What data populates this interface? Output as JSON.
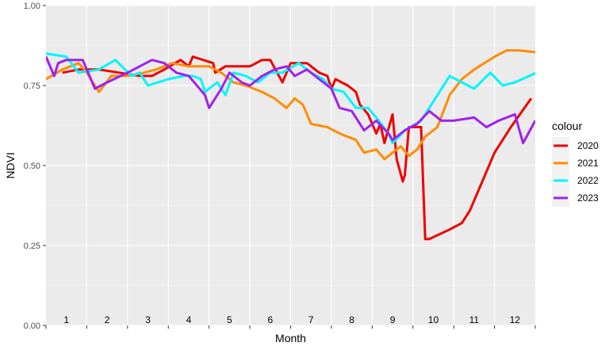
{
  "chart_data": {
    "type": "line",
    "xlabel": "Month",
    "ylabel": "NDVI",
    "xlim": [
      0.5,
      12.5
    ],
    "ylim": [
      0,
      1
    ],
    "yticks": [
      0,
      0.25,
      0.5,
      0.75,
      1
    ],
    "ytick_labels": [
      "0.00",
      "0.25",
      "0.50",
      "0.75",
      "1.00"
    ],
    "month_labels": [
      "1",
      "2",
      "3",
      "4",
      "5",
      "6",
      "7",
      "8",
      "9",
      "10",
      "11",
      "12"
    ],
    "legend_title": "colour",
    "legend_position": "right",
    "grid": true,
    "series": [
      {
        "name": "2020",
        "color": "#ee0000",
        "points": [
          [
            0.9,
            0.79
          ],
          [
            1.3,
            0.8
          ],
          [
            1.8,
            0.8
          ],
          [
            2.3,
            0.79
          ],
          [
            2.8,
            0.78
          ],
          [
            3.1,
            0.78
          ],
          [
            3.4,
            0.8
          ],
          [
            3.8,
            0.83
          ],
          [
            4.0,
            0.81
          ],
          [
            4.1,
            0.84
          ],
          [
            4.6,
            0.82
          ],
          [
            4.65,
            0.79
          ],
          [
            4.9,
            0.81
          ],
          [
            5.1,
            0.81
          ],
          [
            5.5,
            0.81
          ],
          [
            5.8,
            0.83
          ],
          [
            6.0,
            0.83
          ],
          [
            6.3,
            0.76
          ],
          [
            6.5,
            0.82
          ],
          [
            6.9,
            0.82
          ],
          [
            7.2,
            0.79
          ],
          [
            7.4,
            0.78
          ],
          [
            7.5,
            0.74
          ],
          [
            7.6,
            0.77
          ],
          [
            7.9,
            0.75
          ],
          [
            8.1,
            0.73
          ],
          [
            8.2,
            0.69
          ],
          [
            8.4,
            0.66
          ],
          [
            8.6,
            0.6
          ],
          [
            8.7,
            0.63
          ],
          [
            8.8,
            0.57
          ],
          [
            9.0,
            0.66
          ],
          [
            9.1,
            0.52
          ],
          [
            9.25,
            0.45
          ],
          [
            9.3,
            0.47
          ],
          [
            9.4,
            0.62
          ],
          [
            9.7,
            0.62
          ],
          [
            9.8,
            0.27
          ],
          [
            9.9,
            0.27
          ],
          [
            10.4,
            0.3
          ],
          [
            10.7,
            0.32
          ],
          [
            10.9,
            0.36
          ],
          [
            11.5,
            0.54
          ],
          [
            11.9,
            0.62
          ],
          [
            12.4,
            0.71
          ]
        ]
      },
      {
        "name": "2021",
        "color": "#ff8c00",
        "points": [
          [
            0.5,
            0.77
          ],
          [
            0.9,
            0.8
          ],
          [
            1.3,
            0.82
          ],
          [
            1.5,
            0.79
          ],
          [
            1.8,
            0.73
          ],
          [
            2.1,
            0.78
          ],
          [
            2.5,
            0.78
          ],
          [
            2.9,
            0.79
          ],
          [
            3.2,
            0.8
          ],
          [
            3.6,
            0.82
          ],
          [
            4.0,
            0.81
          ],
          [
            4.5,
            0.81
          ],
          [
            4.8,
            0.79
          ],
          [
            5.1,
            0.76
          ],
          [
            5.4,
            0.75
          ],
          [
            5.8,
            0.73
          ],
          [
            6.1,
            0.71
          ],
          [
            6.4,
            0.68
          ],
          [
            6.6,
            0.71
          ],
          [
            6.8,
            0.69
          ],
          [
            7.0,
            0.63
          ],
          [
            7.4,
            0.62
          ],
          [
            7.7,
            0.6
          ],
          [
            8.1,
            0.58
          ],
          [
            8.3,
            0.54
          ],
          [
            8.6,
            0.55
          ],
          [
            8.8,
            0.52
          ],
          [
            9.0,
            0.54
          ],
          [
            9.2,
            0.56
          ],
          [
            9.4,
            0.53
          ],
          [
            9.6,
            0.55
          ],
          [
            9.8,
            0.59
          ],
          [
            10.1,
            0.62
          ],
          [
            10.4,
            0.72
          ],
          [
            10.7,
            0.77
          ],
          [
            11.0,
            0.8
          ],
          [
            11.5,
            0.84
          ],
          [
            11.8,
            0.86
          ],
          [
            12.1,
            0.86
          ],
          [
            12.8,
            0.85
          ]
        ]
      },
      {
        "name": "2022",
        "color": "#00f5ff",
        "points": [
          [
            0.5,
            0.85
          ],
          [
            1.0,
            0.84
          ],
          [
            1.3,
            0.79
          ],
          [
            1.8,
            0.8
          ],
          [
            2.2,
            0.83
          ],
          [
            2.6,
            0.78
          ],
          [
            2.8,
            0.79
          ],
          [
            3.0,
            0.75
          ],
          [
            3.5,
            0.77
          ],
          [
            3.9,
            0.78
          ],
          [
            4.1,
            0.78
          ],
          [
            4.3,
            0.77
          ],
          [
            4.4,
            0.73
          ],
          [
            4.6,
            0.75
          ],
          [
            4.7,
            0.76
          ],
          [
            4.9,
            0.72
          ],
          [
            5.1,
            0.79
          ],
          [
            5.4,
            0.78
          ],
          [
            5.7,
            0.76
          ],
          [
            6.0,
            0.79
          ],
          [
            6.3,
            0.79
          ],
          [
            6.7,
            0.82
          ],
          [
            7.0,
            0.79
          ],
          [
            7.3,
            0.77
          ],
          [
            7.5,
            0.74
          ],
          [
            7.8,
            0.73
          ],
          [
            8.1,
            0.68
          ],
          [
            8.4,
            0.68
          ],
          [
            8.6,
            0.65
          ],
          [
            8.9,
            0.6
          ],
          [
            9.0,
            0.57
          ],
          [
            9.3,
            0.61
          ],
          [
            9.7,
            0.64
          ],
          [
            10.0,
            0.7
          ],
          [
            10.4,
            0.78
          ],
          [
            10.7,
            0.76
          ],
          [
            11.0,
            0.74
          ],
          [
            11.4,
            0.79
          ],
          [
            11.7,
            0.75
          ],
          [
            12.0,
            0.76
          ],
          [
            12.7,
            0.8
          ]
        ]
      },
      {
        "name": "2023",
        "color": "#a020f0",
        "points": [
          [
            0.5,
            0.84
          ],
          [
            0.7,
            0.78
          ],
          [
            0.8,
            0.82
          ],
          [
            1.0,
            0.83
          ],
          [
            1.4,
            0.83
          ],
          [
            1.7,
            0.74
          ],
          [
            2.0,
            0.76
          ],
          [
            2.5,
            0.79
          ],
          [
            3.1,
            0.83
          ],
          [
            3.4,
            0.82
          ],
          [
            3.7,
            0.79
          ],
          [
            4.0,
            0.78
          ],
          [
            4.4,
            0.72
          ],
          [
            4.5,
            0.68
          ],
          [
            4.8,
            0.74
          ],
          [
            5.0,
            0.79
          ],
          [
            5.3,
            0.76
          ],
          [
            5.5,
            0.75
          ],
          [
            5.8,
            0.78
          ],
          [
            6.1,
            0.8
          ],
          [
            6.4,
            0.81
          ],
          [
            6.6,
            0.78
          ],
          [
            6.9,
            0.8
          ],
          [
            7.2,
            0.77
          ],
          [
            7.5,
            0.74
          ],
          [
            7.7,
            0.68
          ],
          [
            8.0,
            0.67
          ],
          [
            8.3,
            0.61
          ],
          [
            8.6,
            0.64
          ],
          [
            8.9,
            0.6
          ],
          [
            9.0,
            0.58
          ],
          [
            9.3,
            0.61
          ],
          [
            9.6,
            0.63
          ],
          [
            9.9,
            0.67
          ],
          [
            10.2,
            0.64
          ],
          [
            10.5,
            0.64
          ],
          [
            11.0,
            0.65
          ],
          [
            11.3,
            0.62
          ],
          [
            11.6,
            0.64
          ],
          [
            12.0,
            0.66
          ],
          [
            12.2,
            0.57
          ],
          [
            12.5,
            0.64
          ]
        ]
      }
    ]
  }
}
